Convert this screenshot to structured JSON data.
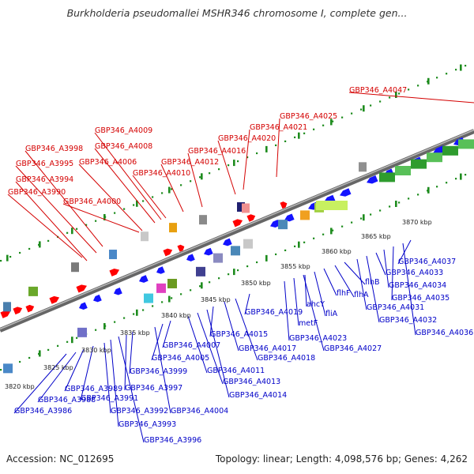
{
  "title": "Burkholderia pseudomallei MSHR346 chromosome I, complete gen...",
  "footer": {
    "accession": "Accession: NC_012695",
    "summary": "Topology: linear; Length: 4,098,576 bp; Genes: 4,262"
  },
  "colors": {
    "forward_label": "#d40000",
    "reverse_label": "#0000c8",
    "tick_green": "#1e8c1e",
    "axis": "#808080",
    "arrow_blue": "#1414ff",
    "arrow_red": "#ff0000",
    "operon_green": "#2e9c2e"
  },
  "scale_ticks": [
    "3820 kbp",
    "3825 kbp",
    "3830 kbp",
    "3835 kbp",
    "3840 kbp",
    "3845 kbp",
    "3850 kbp",
    "3855 kbp",
    "3860 kbp",
    "3865 kbp",
    "3870 kbp"
  ],
  "forward_genes": [
    "GBP346_A3990",
    "GBP346_A3994",
    "GBP346_A3995",
    "GBP346_A3998",
    "GBP346_A4000",
    "GBP346_A4006",
    "GBP346_A4008",
    "GBP346_A4009",
    "GBP346_A4010",
    "GBP346_A4012",
    "GBP346_A4016",
    "GBP346_A4020",
    "GBP346_A4021",
    "GBP346_A4025",
    "GBP346_A4047"
  ],
  "reverse_genes": [
    "GBP346_A3986",
    "GBP346_A3988",
    "GBP346_A3989",
    "GBP346_A3991",
    "GBP346_A3992",
    "GBP346_A3993",
    "GBP346_A3996",
    "GBP346_A3997",
    "GBP346_A3999",
    "GBP346_A4004",
    "GBP346_A4005",
    "GBP346_A4007",
    "GBP346_A4011",
    "GBP346_A4013",
    "GBP346_A4014",
    "GBP346_A4015",
    "GBP346_A4017",
    "GBP346_A4018",
    "GBP346_A4019",
    "GBP346_A4023",
    "GBP346_A4027",
    "metF",
    "ahcY",
    "fliA",
    "flhF",
    "flhA",
    "flhB",
    "GBP346_A4031",
    "GBP346_A4032",
    "GBP346_A4033",
    "GBP346_A4034",
    "GBP346_A4035",
    "GBP346_A4036",
    "GBP346_A4037"
  ]
}
